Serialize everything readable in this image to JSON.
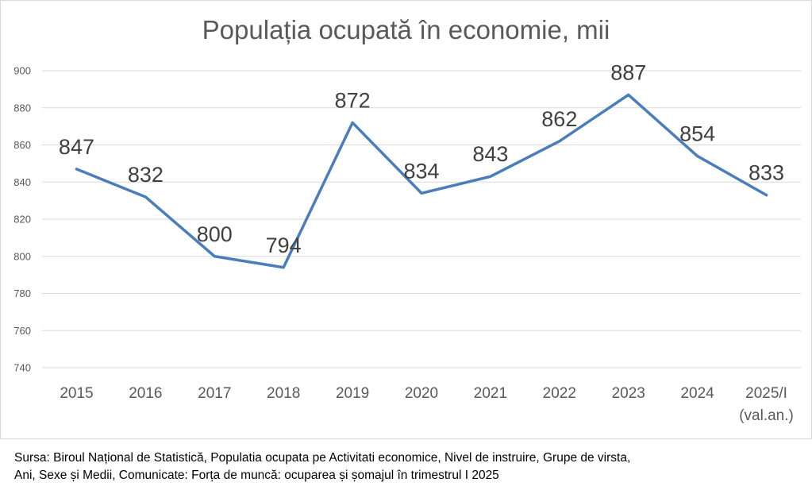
{
  "chart_data": {
    "type": "line",
    "title": "Populația ocupată în economie, mii",
    "categories": [
      "2015",
      "2016",
      "2017",
      "2018",
      "2019",
      "2020",
      "2021",
      "2022",
      "2023",
      "2024",
      "2025/I (val.an.)"
    ],
    "category_lines": [
      [
        "2015"
      ],
      [
        "2016"
      ],
      [
        "2017"
      ],
      [
        "2018"
      ],
      [
        "2019"
      ],
      [
        "2020"
      ],
      [
        "2021"
      ],
      [
        "2022"
      ],
      [
        "2023"
      ],
      [
        "2024"
      ],
      [
        "2025/I",
        "(val.an.)"
      ]
    ],
    "series": [
      {
        "values": [
          847,
          832,
          800,
          794,
          872,
          834,
          843,
          862,
          887,
          854,
          833
        ],
        "color": "#4a7ebb"
      }
    ],
    "data_labels": [
      "847",
      "832",
      "800",
      "794",
      "872",
      "834",
      "843",
      "862",
      "887",
      "854",
      "833"
    ],
    "ylim": [
      740,
      900
    ],
    "yticks": [
      740,
      760,
      780,
      800,
      820,
      840,
      860,
      880,
      900
    ],
    "grid": true,
    "legend": "none"
  },
  "source_lines": [
    "Sursa: Biroul Național de Statistică, Populatia ocupata pe Activitati economice, Nivel de instruire, Grupe de virsta,",
    "Ani, Sexe și Medii, Comunicate: Forța de muncă: ocuparea și șomajul în trimestrul I 2025"
  ]
}
